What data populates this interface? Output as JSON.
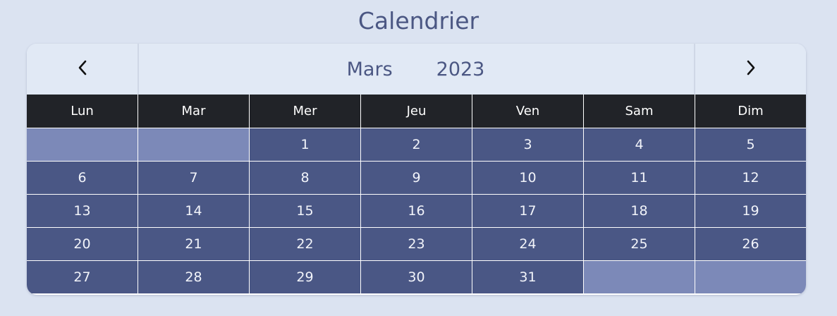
{
  "title": "Calendrier",
  "header": {
    "month": "Mars",
    "year": "2023",
    "prev_icon": "chevron-left-icon",
    "next_icon": "chevron-right-icon"
  },
  "weekdays": [
    "Lun",
    "Mar",
    "Mer",
    "Jeu",
    "Ven",
    "Sam",
    "Dim"
  ],
  "weeks": [
    [
      "",
      "",
      "1",
      "2",
      "3",
      "4",
      "5"
    ],
    [
      "6",
      "7",
      "8",
      "9",
      "10",
      "11",
      "12"
    ],
    [
      "13",
      "14",
      "15",
      "16",
      "17",
      "18",
      "19"
    ],
    [
      "20",
      "21",
      "22",
      "23",
      "24",
      "25",
      "26"
    ],
    [
      "27",
      "28",
      "29",
      "30",
      "31",
      "",
      ""
    ]
  ],
  "colors": {
    "background": "#dbe3f1",
    "header_bg": "#e1e9f5",
    "weekday_bg": "#212328",
    "day_bg": "#4a5785",
    "empty_day_bg": "#7c89b8",
    "title_text": "#4b5783"
  }
}
